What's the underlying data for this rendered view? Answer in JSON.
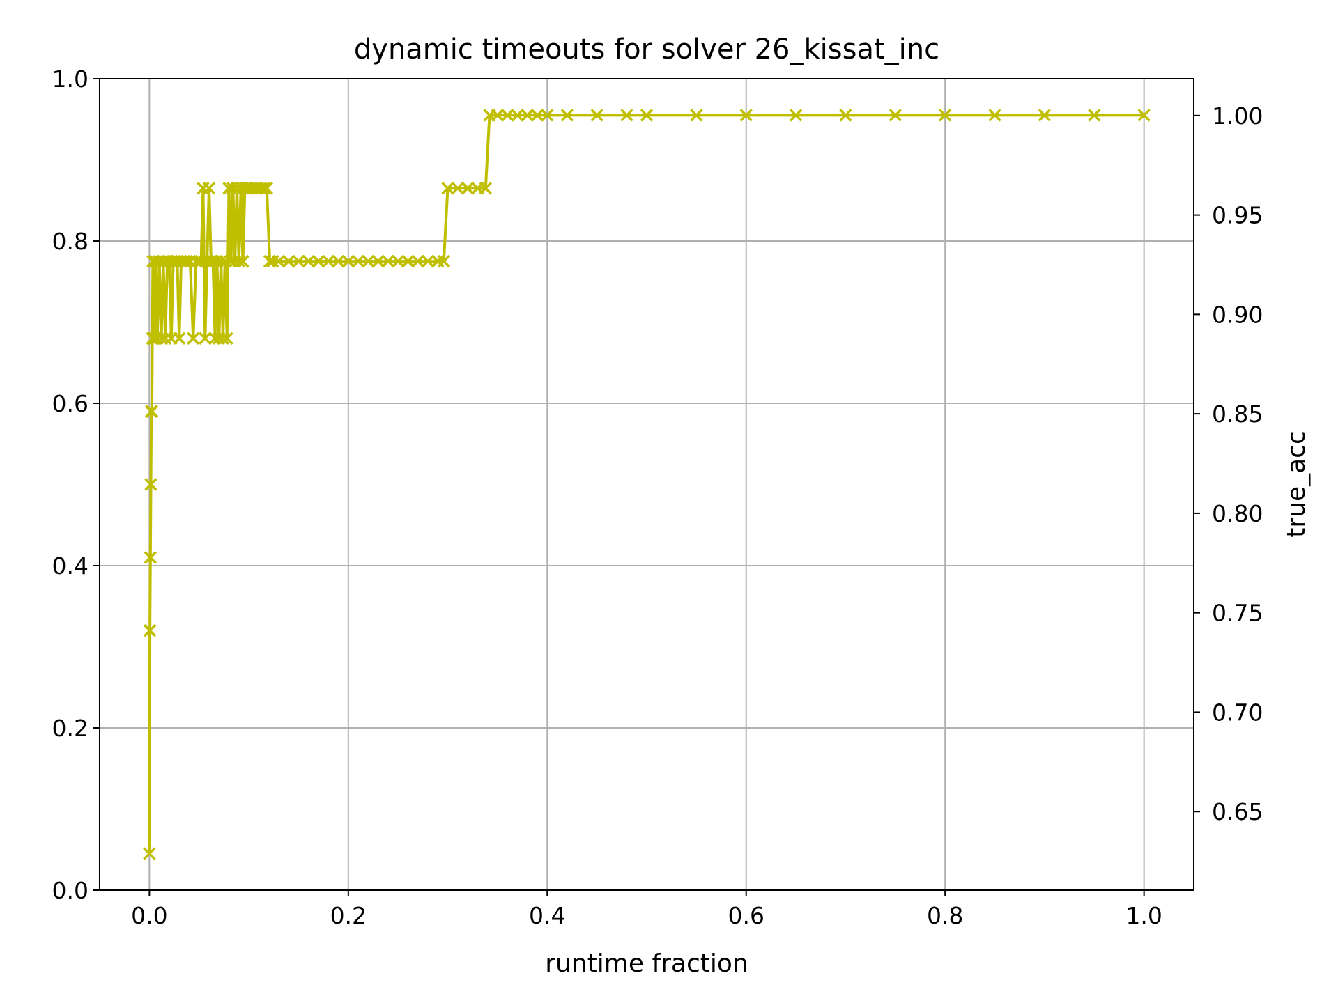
{
  "chart_data": {
    "type": "line",
    "title": "dynamic timeouts for solver 26_kissat_inc",
    "xlabel": "runtime fraction",
    "ylabel_right": "true_acc",
    "xlim": [
      -0.05,
      1.05
    ],
    "ylim_left": [
      0.0,
      1.0
    ],
    "ylim_right": [
      0.6105,
      1.0185
    ],
    "x_ticks": [
      "0.0",
      "0.2",
      "0.4",
      "0.6",
      "0.8",
      "1.0"
    ],
    "y_ticks_left": [
      "0.0",
      "0.2",
      "0.4",
      "0.6",
      "0.8",
      "1.0"
    ],
    "y_ticks_right": [
      "0.65",
      "0.70",
      "0.75",
      "0.80",
      "0.85",
      "0.90",
      "0.95",
      "1.00"
    ],
    "grid": true,
    "colors": {
      "series": "#bfbf00",
      "right_label": "#ff0000",
      "grid": "#b0b0b0",
      "axes": "#000000"
    },
    "series": [
      {
        "marker": "x",
        "x": [
          0.0,
          0.0005,
          0.001,
          0.0015,
          0.002,
          0.0025,
          0.003,
          0.0035,
          0.004,
          0.005,
          0.006,
          0.008,
          0.01,
          0.012,
          0.014,
          0.016,
          0.018,
          0.02,
          0.022,
          0.024,
          0.026,
          0.028,
          0.03,
          0.032,
          0.035,
          0.038,
          0.041,
          0.044,
          0.047,
          0.05,
          0.052,
          0.054,
          0.056,
          0.058,
          0.06,
          0.062,
          0.064,
          0.066,
          0.068,
          0.07,
          0.072,
          0.074,
          0.076,
          0.078,
          0.08,
          0.082,
          0.084,
          0.086,
          0.088,
          0.09,
          0.092,
          0.094,
          0.096,
          0.098,
          0.1,
          0.103,
          0.106,
          0.109,
          0.112,
          0.115,
          0.118,
          0.121,
          0.124,
          0.13,
          0.14,
          0.15,
          0.16,
          0.17,
          0.18,
          0.19,
          0.2,
          0.21,
          0.22,
          0.23,
          0.24,
          0.25,
          0.26,
          0.27,
          0.28,
          0.29,
          0.296,
          0.3,
          0.31,
          0.32,
          0.33,
          0.338,
          0.342,
          0.35,
          0.36,
          0.37,
          0.38,
          0.39,
          0.4,
          0.42,
          0.45,
          0.48,
          0.5,
          0.55,
          0.6,
          0.65,
          0.7,
          0.75,
          0.8,
          0.85,
          0.9,
          0.95,
          1.0
        ],
        "y": [
          0.045,
          0.32,
          0.41,
          0.5,
          0.59,
          0.59,
          0.68,
          0.775,
          0.68,
          0.68,
          0.775,
          0.68,
          0.775,
          0.68,
          0.775,
          0.68,
          0.775,
          0.775,
          0.68,
          0.775,
          0.775,
          0.775,
          0.68,
          0.775,
          0.775,
          0.775,
          0.775,
          0.68,
          0.775,
          0.775,
          0.775,
          0.865,
          0.68,
          0.775,
          0.865,
          0.775,
          0.775,
          0.68,
          0.775,
          0.68,
          0.775,
          0.68,
          0.775,
          0.68,
          0.865,
          0.775,
          0.865,
          0.775,
          0.865,
          0.775,
          0.865,
          0.775,
          0.865,
          0.865,
          0.865,
          0.865,
          0.865,
          0.865,
          0.865,
          0.865,
          0.865,
          0.775,
          0.775,
          0.775,
          0.775,
          0.775,
          0.775,
          0.775,
          0.775,
          0.775,
          0.775,
          0.775,
          0.775,
          0.775,
          0.775,
          0.775,
          0.775,
          0.775,
          0.775,
          0.775,
          0.775,
          0.865,
          0.865,
          0.865,
          0.865,
          0.865,
          0.955,
          0.955,
          0.955,
          0.955,
          0.955,
          0.955,
          0.955,
          0.955,
          0.955,
          0.955,
          0.955,
          0.955,
          0.955,
          0.955,
          0.955,
          0.955,
          0.955,
          0.955,
          0.955,
          0.955,
          0.955
        ]
      }
    ]
  }
}
